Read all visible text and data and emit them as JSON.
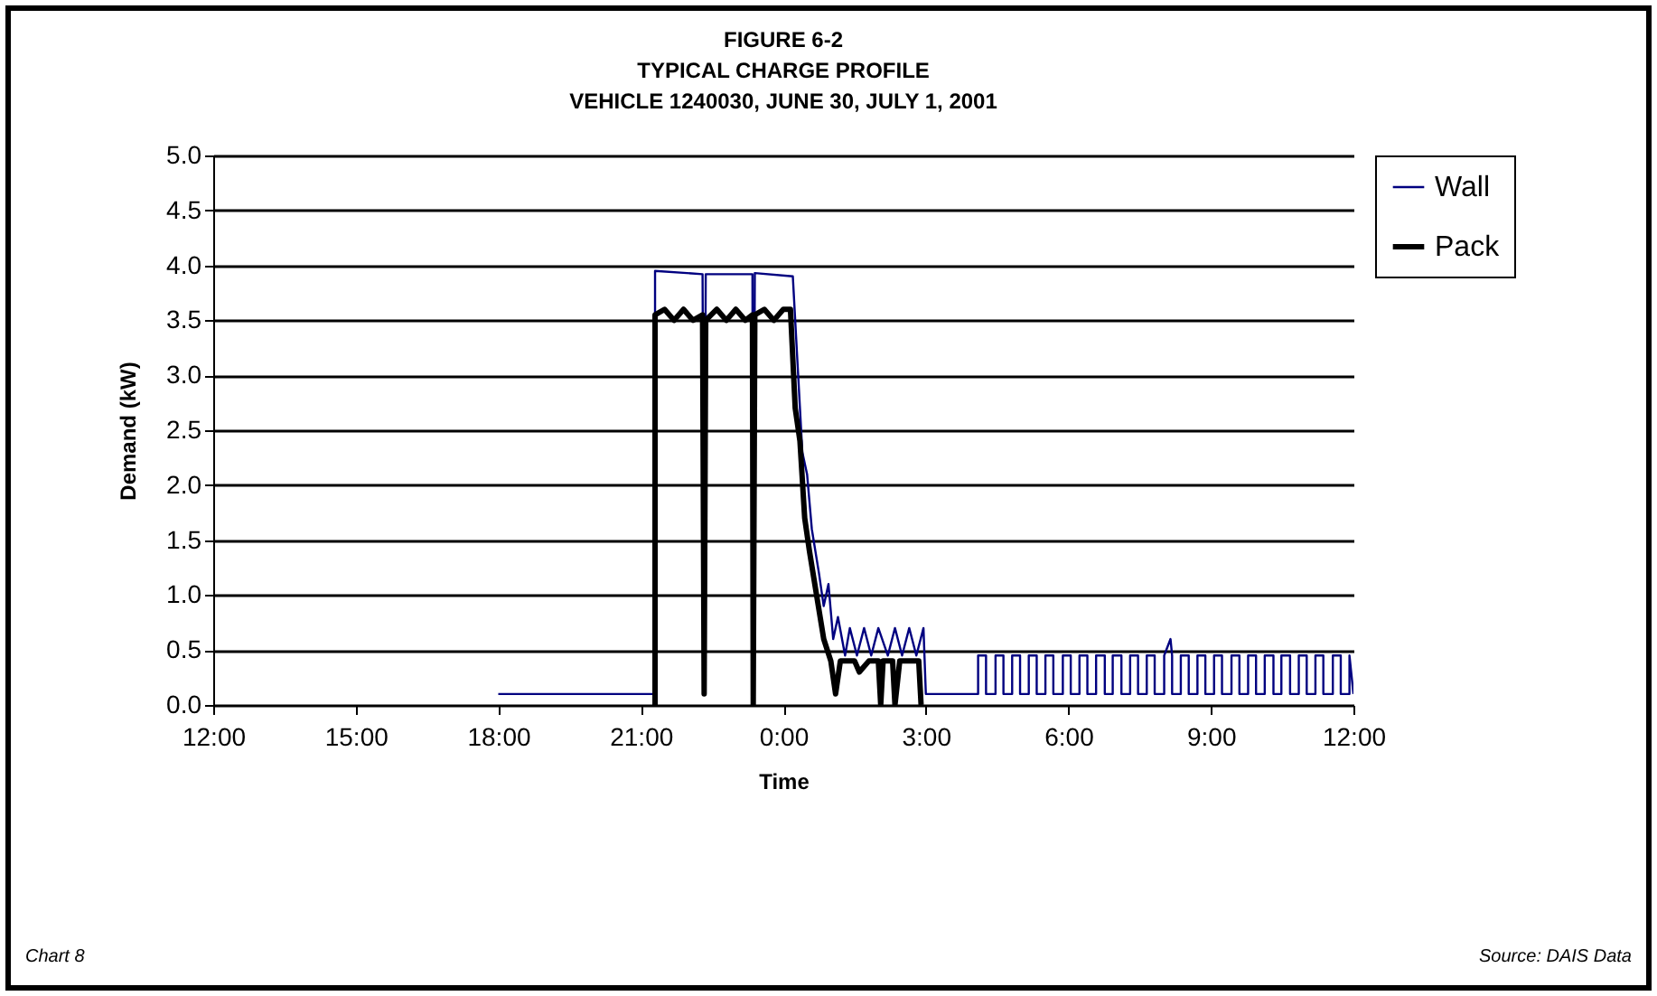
{
  "chart_data": {
    "type": "line",
    "title": [
      "FIGURE 6-2",
      "TYPICAL CHARGE PROFILE",
      "VEHICLE 1240030, JUNE 30, JULY 1, 2001"
    ],
    "xlabel": "Time",
    "ylabel": "Demand (kW)",
    "annotations": [
      "Chart 8",
      "Source: DAIS Data"
    ],
    "xlim": [
      "2001-06-30T12:00",
      "2001-07-01T12:00"
    ],
    "xticks": [
      {
        "value": "2001-06-30T12:00",
        "label": "12:00"
      },
      {
        "value": "2001-06-30T15:00",
        "label": "15:00"
      },
      {
        "value": "2001-06-30T18:00",
        "label": "18:00"
      },
      {
        "value": "2001-06-30T21:00",
        "label": "21:00"
      },
      {
        "value": "2001-07-01T00:00",
        "label": "0:00"
      },
      {
        "value": "2001-07-01T03:00",
        "label": "3:00"
      },
      {
        "value": "2001-07-01T06:00",
        "label": "6:00"
      },
      {
        "value": "2001-07-01T09:00",
        "label": "9:00"
      },
      {
        "value": "2001-07-01T12:00",
        "label": "12:00"
      }
    ],
    "ylim": [
      0,
      5
    ],
    "yticks": [
      {
        "value": 0,
        "label": "0.0"
      },
      {
        "value": 0.5,
        "label": "0.5"
      },
      {
        "value": 1,
        "label": "1.0"
      },
      {
        "value": 1.5,
        "label": "1.5"
      },
      {
        "value": 2,
        "label": "2.0"
      },
      {
        "value": 2.5,
        "label": "2.5"
      },
      {
        "value": 3,
        "label": "3.0"
      },
      {
        "value": 3.5,
        "label": "3.5"
      },
      {
        "value": 4,
        "label": "4.0"
      },
      {
        "value": 4.5,
        "label": "4.5"
      },
      {
        "value": 5,
        "label": "5.0"
      }
    ],
    "grid": "y",
    "legend": "right",
    "marker": "none",
    "series": [
      {
        "name": "Wall",
        "color": "#000080",
        "x": [
          "2001-06-30T18:00",
          "2001-06-30T21:18",
          "2001-06-30T21:18",
          "2001-06-30T22:18",
          "2001-06-30T22:20",
          "2001-06-30T22:22",
          "2001-06-30T23:21",
          "2001-06-30T23:22",
          "2001-06-30T23:24",
          "2001-07-01T00:12",
          "2001-07-01T00:18",
          "2001-07-01T00:24",
          "2001-07-01T00:30",
          "2001-07-01T00:36",
          "2001-07-01T00:45",
          "2001-07-01T00:51",
          "2001-07-01T00:57",
          "2001-07-01T01:03",
          "2001-07-01T01:09",
          "2001-07-01T01:18",
          "2001-07-01T01:24",
          "2001-07-01T01:33",
          "2001-07-01T01:42",
          "2001-07-01T01:51",
          "2001-07-01T02:00",
          "2001-07-01T02:12",
          "2001-07-01T02:21",
          "2001-07-01T02:30",
          "2001-07-01T02:39",
          "2001-07-01T02:48",
          "2001-07-01T02:57",
          "2001-07-01T03:00",
          "2001-07-01T04:06",
          "2001-07-01T04:06",
          "2001-07-01T04:16",
          "2001-07-01T04:16",
          "2001-07-01T04:28",
          "2001-07-01T04:28",
          "2001-07-01T04:38",
          "2001-07-01T04:38",
          "2001-07-01T04:49",
          "2001-07-01T04:49",
          "2001-07-01T04:59",
          "2001-07-01T04:59",
          "2001-07-01T05:10",
          "2001-07-01T05:10",
          "2001-07-01T05:20",
          "2001-07-01T05:20",
          "2001-07-01T05:31",
          "2001-07-01T05:31",
          "2001-07-01T05:41",
          "2001-07-01T05:41",
          "2001-07-01T05:53",
          "2001-07-01T05:53",
          "2001-07-01T06:03",
          "2001-07-01T06:03",
          "2001-07-01T06:14",
          "2001-07-01T06:14",
          "2001-07-01T06:24",
          "2001-07-01T06:24",
          "2001-07-01T06:35",
          "2001-07-01T06:35",
          "2001-07-01T06:46",
          "2001-07-01T06:46",
          "2001-07-01T06:56",
          "2001-07-01T06:56",
          "2001-07-01T07:07",
          "2001-07-01T07:07",
          "2001-07-01T07:18",
          "2001-07-01T07:18",
          "2001-07-01T07:28",
          "2001-07-01T07:28",
          "2001-07-01T07:39",
          "2001-07-01T07:39",
          "2001-07-01T07:49",
          "2001-07-01T07:49",
          "2001-07-01T08:01",
          "2001-07-01T08:01",
          "2001-07-01T08:09",
          "2001-07-01T08:11",
          "2001-07-01T08:11",
          "2001-07-01T08:22",
          "2001-07-01T08:22",
          "2001-07-01T08:32",
          "2001-07-01T08:32",
          "2001-07-01T08:43",
          "2001-07-01T08:43",
          "2001-07-01T08:53",
          "2001-07-01T08:53",
          "2001-07-01T09:04",
          "2001-07-01T09:04",
          "2001-07-01T09:14",
          "2001-07-01T09:14",
          "2001-07-01T09:26",
          "2001-07-01T09:26",
          "2001-07-01T09:36",
          "2001-07-01T09:36",
          "2001-07-01T09:47",
          "2001-07-01T09:47",
          "2001-07-01T09:57",
          "2001-07-01T09:57",
          "2001-07-01T10:08",
          "2001-07-01T10:08",
          "2001-07-01T10:19",
          "2001-07-01T10:19",
          "2001-07-01T10:29",
          "2001-07-01T10:29",
          "2001-07-01T10:40",
          "2001-07-01T10:40",
          "2001-07-01T10:51",
          "2001-07-01T10:51",
          "2001-07-01T11:01",
          "2001-07-01T11:01",
          "2001-07-01T11:12",
          "2001-07-01T11:12",
          "2001-07-01T11:22",
          "2001-07-01T11:22",
          "2001-07-01T11:34",
          "2001-07-01T11:34",
          "2001-07-01T11:44",
          "2001-07-01T11:44",
          "2001-07-01T11:55",
          "2001-07-01T11:55",
          "2001-07-01T12:00"
        ],
        "values": [
          0.1,
          0.1,
          3.95,
          3.92,
          0.5,
          3.92,
          3.92,
          0.1,
          3.93,
          3.9,
          3.1,
          2.3,
          2.1,
          1.6,
          1.2,
          0.9,
          1.1,
          0.6,
          0.8,
          0.45,
          0.7,
          0.45,
          0.7,
          0.45,
          0.7,
          0.45,
          0.7,
          0.45,
          0.7,
          0.45,
          0.7,
          0.1,
          0.1,
          0.45,
          0.45,
          0.1,
          0.1,
          0.45,
          0.45,
          0.1,
          0.1,
          0.45,
          0.45,
          0.1,
          0.1,
          0.45,
          0.45,
          0.1,
          0.1,
          0.45,
          0.45,
          0.1,
          0.1,
          0.45,
          0.45,
          0.1,
          0.1,
          0.45,
          0.45,
          0.1,
          0.1,
          0.45,
          0.45,
          0.1,
          0.1,
          0.45,
          0.45,
          0.1,
          0.1,
          0.45,
          0.45,
          0.1,
          0.1,
          0.45,
          0.45,
          0.1,
          0.1,
          0.45,
          0.6,
          0.45,
          0.1,
          0.1,
          0.45,
          0.45,
          0.1,
          0.1,
          0.45,
          0.45,
          0.1,
          0.1,
          0.45,
          0.45,
          0.1,
          0.1,
          0.45,
          0.45,
          0.1,
          0.1,
          0.45,
          0.45,
          0.1,
          0.1,
          0.45,
          0.45,
          0.1,
          0.1,
          0.45,
          0.45,
          0.1,
          0.1,
          0.45,
          0.45,
          0.1,
          0.1,
          0.45,
          0.45,
          0.1,
          0.1,
          0.45,
          0.45,
          0.1,
          0.1,
          0.45,
          0.1
        ]
      },
      {
        "name": "Pack",
        "color": "#000000",
        "x": [
          "2001-06-30T21:18",
          "2001-06-30T21:18",
          "2001-06-30T21:30",
          "2001-06-30T21:42",
          "2001-06-30T21:54",
          "2001-06-30T22:06",
          "2001-06-30T22:18",
          "2001-06-30T22:20",
          "2001-06-30T22:22",
          "2001-06-30T22:36",
          "2001-06-30T22:48",
          "2001-06-30T23:00",
          "2001-06-30T23:12",
          "2001-06-30T23:21",
          "2001-06-30T23:22",
          "2001-06-30T23:24",
          "2001-06-30T23:36",
          "2001-06-30T23:48",
          "2001-07-01T00:00",
          "2001-07-01T00:09",
          "2001-07-01T00:15",
          "2001-07-01T00:21",
          "2001-07-01T00:27",
          "2001-07-01T00:33",
          "2001-07-01T00:42",
          "2001-07-01T00:51",
          "2001-07-01T01:00",
          "2001-07-01T01:06",
          "2001-07-01T01:12",
          "2001-07-01T01:30",
          "2001-07-01T01:36",
          "2001-07-01T01:48",
          "2001-07-01T02:00",
          "2001-07-01T02:03",
          "2001-07-01T02:06",
          "2001-07-01T02:18",
          "2001-07-01T02:21",
          "2001-07-01T02:27",
          "2001-07-01T02:51",
          "2001-07-01T02:54"
        ],
        "values": [
          0,
          3.55,
          3.6,
          3.5,
          3.6,
          3.5,
          3.55,
          0.1,
          3.5,
          3.6,
          3.5,
          3.6,
          3.5,
          3.55,
          0,
          3.55,
          3.6,
          3.5,
          3.6,
          3.6,
          2.7,
          2.4,
          1.7,
          1.4,
          1.0,
          0.6,
          0.4,
          0.1,
          0.4,
          0.4,
          0.3,
          0.4,
          0.4,
          0,
          0.4,
          0.4,
          0,
          0.4,
          0.4,
          0
        ]
      }
    ]
  }
}
